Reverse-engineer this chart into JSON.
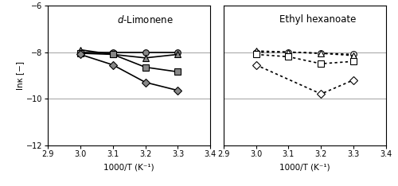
{
  "title_left": "$d$-Limonene",
  "title_right": "Ethyl hexanoate",
  "xlabel": "1000/T (K⁻¹)",
  "ylabel": "lnκ [−]",
  "xlim": [
    2.9,
    3.4
  ],
  "ylim": [
    -12,
    -6
  ],
  "yticks": [
    -12,
    -10,
    -8,
    -6
  ],
  "xticks": [
    2.9,
    3.0,
    3.1,
    3.2,
    3.3,
    3.4
  ],
  "grid_yticks": [
    -10,
    -8
  ],
  "left_series": [
    {
      "x": [
        3.0,
        3.1,
        3.2,
        3.3
      ],
      "y": [
        -8.0,
        -8.0,
        -8.0,
        -8.0
      ],
      "marker": "o",
      "gray": "#888888"
    },
    {
      "x": [
        3.0,
        3.1,
        3.2,
        3.3
      ],
      "y": [
        -7.9,
        -8.1,
        -8.25,
        -8.1
      ],
      "marker": "^",
      "gray": "#888888"
    },
    {
      "x": [
        3.0,
        3.1,
        3.2,
        3.3
      ],
      "y": [
        -8.05,
        -8.1,
        -8.65,
        -8.85
      ],
      "marker": "s",
      "gray": "#888888"
    },
    {
      "x": [
        3.0,
        3.1,
        3.2,
        3.3
      ],
      "y": [
        -8.1,
        -8.55,
        -9.3,
        -9.65
      ],
      "marker": "D",
      "gray": "#888888"
    }
  ],
  "right_series": [
    {
      "x": [
        3.0,
        3.1,
        3.2,
        3.3
      ],
      "y": [
        -8.0,
        -8.0,
        -8.05,
        -8.1
      ],
      "marker": "o"
    },
    {
      "x": [
        3.0,
        3.1,
        3.2,
        3.3
      ],
      "y": [
        -7.95,
        -8.0,
        -8.05,
        -8.15
      ],
      "marker": "^"
    },
    {
      "x": [
        3.0,
        3.1,
        3.2,
        3.3
      ],
      "y": [
        -8.1,
        -8.2,
        -8.5,
        -8.4
      ],
      "marker": "s"
    },
    {
      "x": [
        3.0,
        3.2,
        3.3
      ],
      "y": [
        -8.55,
        -9.8,
        -9.2
      ],
      "marker": "D"
    }
  ],
  "grid_color": "#aaaaaa",
  "background": "#ffffff",
  "title_fontsize": 8.5,
  "label_fontsize": 7.5,
  "tick_fontsize": 7,
  "marker_size": 5.5,
  "linewidth": 1.2
}
